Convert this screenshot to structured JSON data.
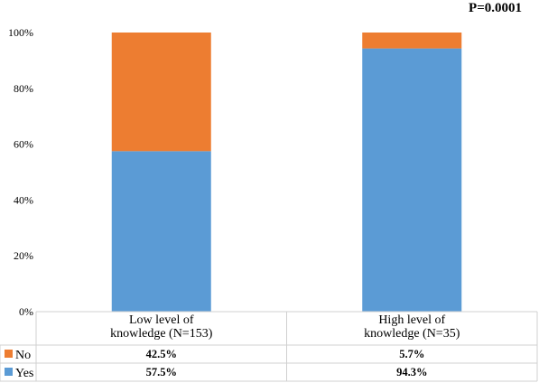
{
  "chart_data": {
    "type": "bar",
    "stacked": true,
    "categories": [
      [
        "Low level of",
        "knowledge (N=153)"
      ],
      [
        "High level of",
        "knowledge (N=35)"
      ]
    ],
    "series": [
      {
        "name": "Yes",
        "values": [
          57.5,
          94.3
        ],
        "labels": [
          "57.5%",
          "94.3%"
        ],
        "color": "#5b9bd5"
      },
      {
        "name": "No",
        "values": [
          42.5,
          5.7
        ],
        "labels": [
          "42.5%",
          "5.7%"
        ],
        "color": "#ed7d31"
      }
    ],
    "table_rows": [
      "No",
      "Yes"
    ],
    "ylim": [
      0,
      100
    ],
    "yticks": [
      "0%",
      "20%",
      "40%",
      "60%",
      "80%",
      "100%"
    ],
    "annotation": "P=0.0001",
    "grid": false
  }
}
